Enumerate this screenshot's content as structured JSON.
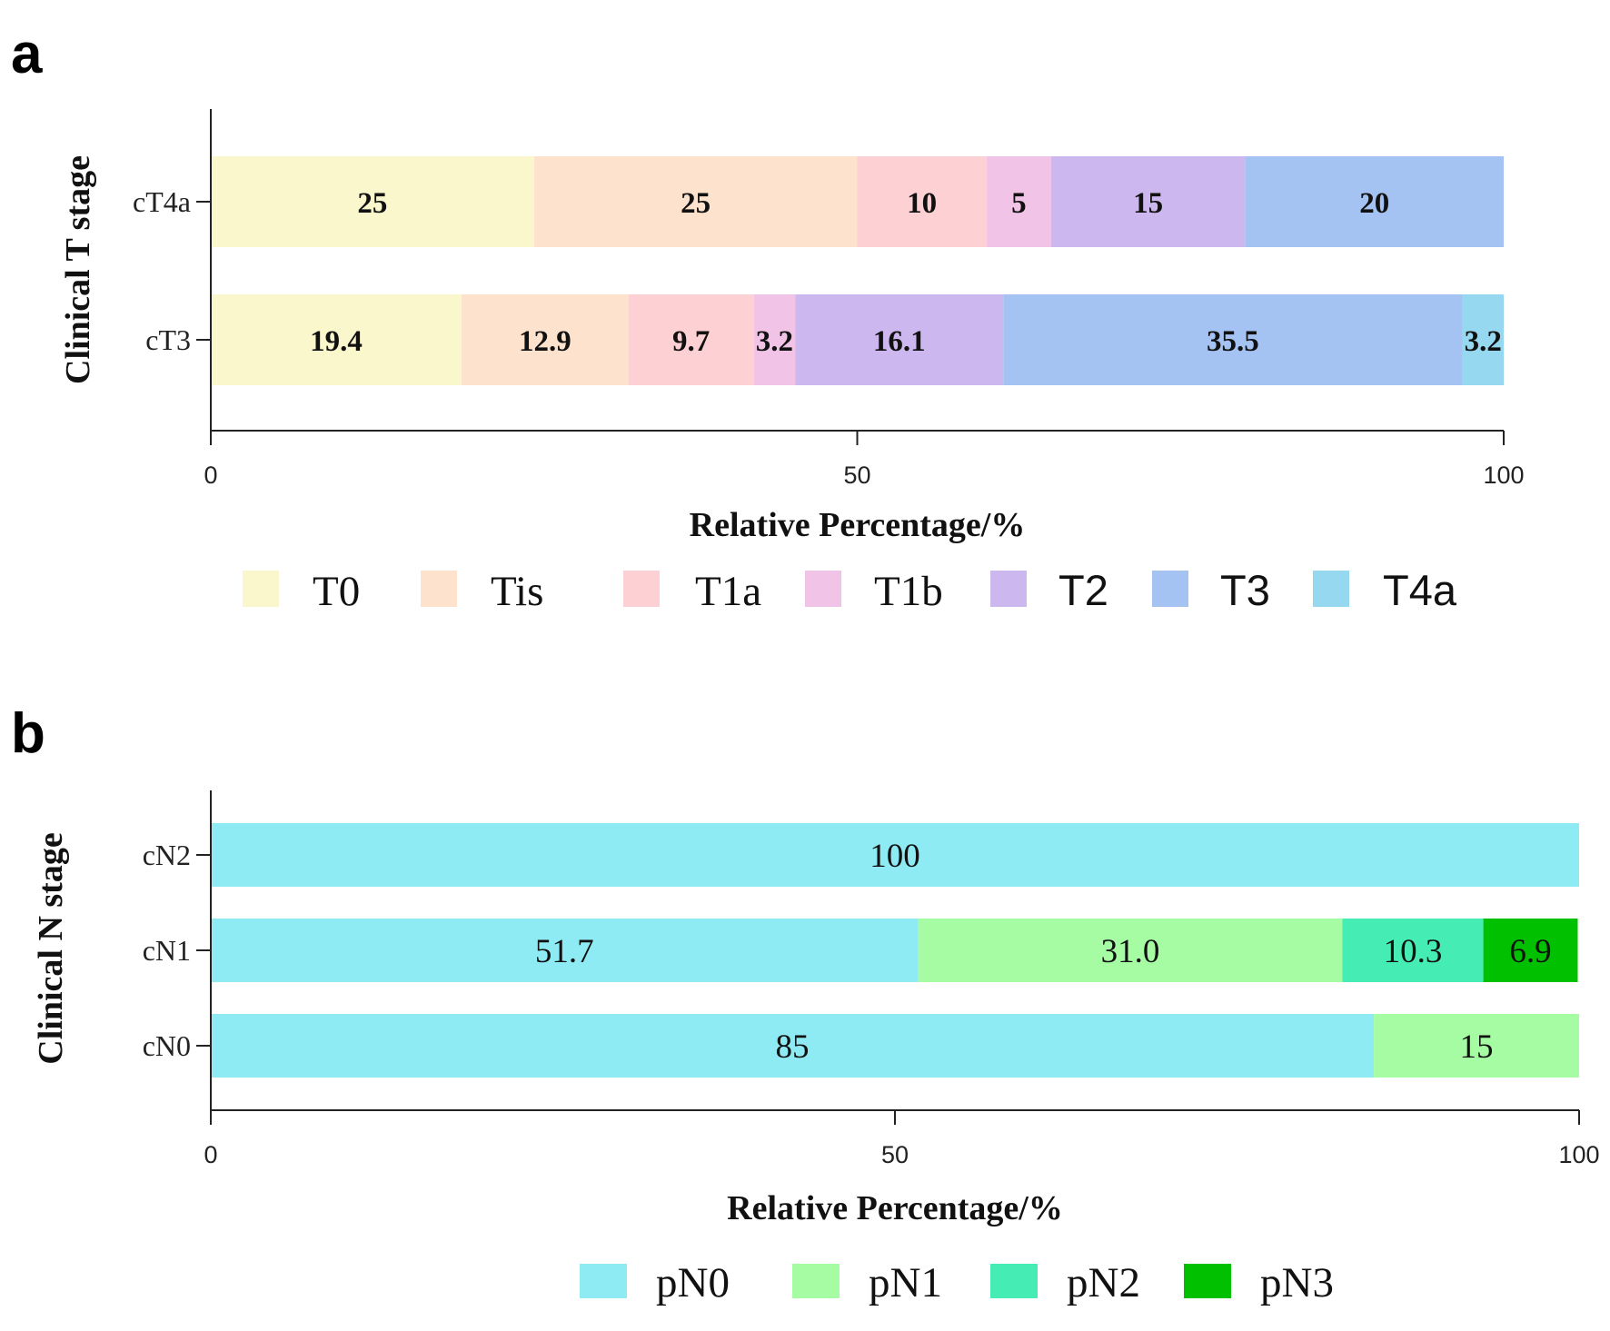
{
  "chart_data": [
    {
      "panel": "a",
      "type": "bar",
      "orientation": "horizontal",
      "stacked": true,
      "title": "",
      "xlabel": "Relative Percentage/%",
      "ylabel": "Clinical T stage",
      "xlim": [
        0,
        100
      ],
      "xticks": [
        "0",
        "50",
        "100"
      ],
      "categories": [
        "cT4a",
        "cT3"
      ],
      "series": [
        {
          "name": "T0",
          "color": "#fbf7cc",
          "values": [
            25,
            19.4
          ],
          "labels": [
            "25",
            "19.4"
          ]
        },
        {
          "name": "Tis",
          "color": "#fde3cd",
          "values": [
            25,
            12.9
          ],
          "labels": [
            "25",
            "12.9"
          ]
        },
        {
          "name": "T1a",
          "color": "#fdd1d4",
          "values": [
            10,
            9.7
          ],
          "labels": [
            "10",
            "9.7"
          ]
        },
        {
          "name": "T1b",
          "color": "#f1c3e7",
          "values": [
            5,
            3.2
          ],
          "labels": [
            "5",
            "3.2"
          ]
        },
        {
          "name": "T2",
          "color": "#ccb8ee",
          "values": [
            15,
            16.1
          ],
          "labels": [
            "15",
            "16.1"
          ]
        },
        {
          "name": "T3",
          "color": "#a4c2f2",
          "values": [
            20,
            35.5
          ],
          "labels": [
            "20",
            "35.5"
          ]
        },
        {
          "name": "T4a",
          "color": "#95d8f0",
          "values": [
            0,
            3.2
          ],
          "labels": [
            "",
            "3.2"
          ]
        }
      ],
      "legend": "bottom"
    },
    {
      "panel": "b",
      "type": "bar",
      "orientation": "horizontal",
      "stacked": true,
      "title": "",
      "xlabel": "Relative Percentage/%",
      "ylabel": "Clinical N stage",
      "xlim": [
        0,
        100
      ],
      "xticks": [
        "0",
        "50",
        "100"
      ],
      "categories": [
        "cN2",
        "cN1",
        "cN0"
      ],
      "series": [
        {
          "name": "pN0",
          "color": "#8eebf3",
          "values": [
            100,
            51.7,
            85
          ],
          "labels": [
            "100",
            "51.7",
            "85"
          ]
        },
        {
          "name": "pN1",
          "color": "#a6fca3",
          "values": [
            0,
            31.0,
            15
          ],
          "labels": [
            "",
            "31.0",
            "15"
          ]
        },
        {
          "name": "pN2",
          "color": "#45edb4",
          "values": [
            0,
            10.3,
            0
          ],
          "labels": [
            "",
            "10.3",
            ""
          ]
        },
        {
          "name": "pN3",
          "color": "#00c000",
          "values": [
            0,
            6.9,
            0
          ],
          "labels": [
            "",
            "6.9",
            ""
          ]
        }
      ],
      "legend": "bottom"
    }
  ]
}
